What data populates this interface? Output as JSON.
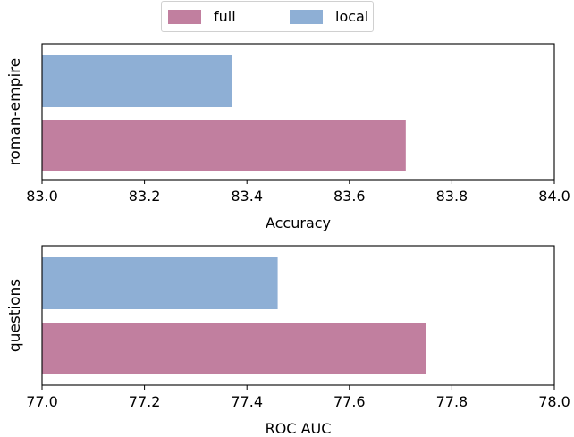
{
  "legend": {
    "items": [
      {
        "label": "full",
        "color": "#c17f9f"
      },
      {
        "label": "local",
        "color": "#8eafd5"
      }
    ]
  },
  "chart_data": [
    {
      "type": "bar",
      "orientation": "horizontal",
      "category": "roman-empire",
      "xlabel": "Accuracy",
      "xlim": [
        83.0,
        84.0
      ],
      "xticks": [
        "83.0",
        "83.2",
        "83.4",
        "83.6",
        "83.8",
        "84.0"
      ],
      "series": [
        {
          "name": "local",
          "value": 83.37,
          "color": "#8eafd5"
        },
        {
          "name": "full",
          "value": 83.71,
          "color": "#c17f9f"
        }
      ]
    },
    {
      "type": "bar",
      "orientation": "horizontal",
      "category": "questions",
      "xlabel": "ROC AUC",
      "xlim": [
        77.0,
        78.0
      ],
      "xticks": [
        "77.0",
        "77.2",
        "77.4",
        "77.6",
        "77.8",
        "78.0"
      ],
      "series": [
        {
          "name": "local",
          "value": 77.46,
          "color": "#8eafd5"
        },
        {
          "name": "full",
          "value": 77.75,
          "color": "#c17f9f"
        }
      ]
    }
  ]
}
